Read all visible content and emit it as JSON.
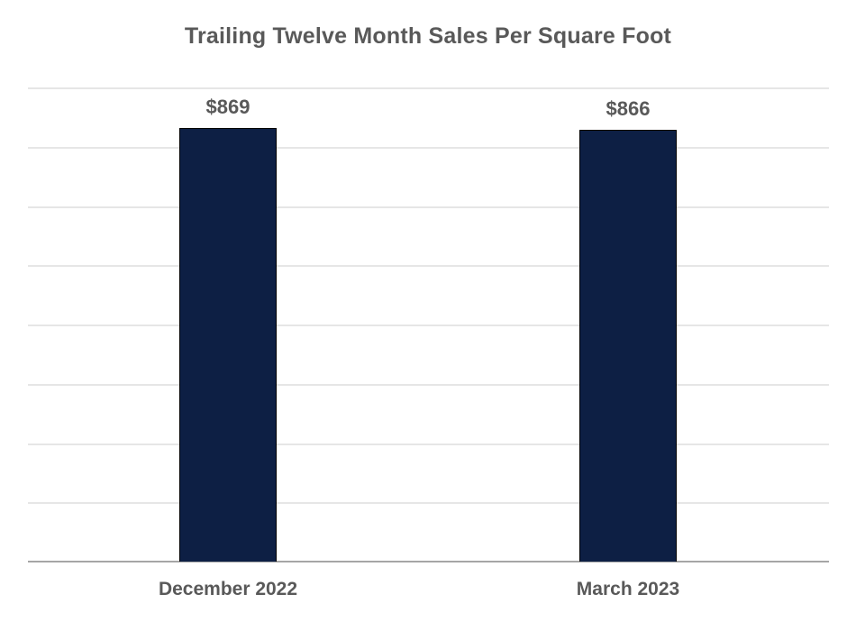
{
  "chart_data": {
    "type": "bar",
    "title": "Trailing Twelve Month Sales Per Square Foot",
    "categories": [
      "December 2022",
      "March 2023"
    ],
    "values": [
      869,
      866
    ],
    "data_labels": [
      "$869",
      "$866"
    ],
    "xlabel": "",
    "ylabel": "",
    "ylim": [
      0,
      950
    ],
    "gridlines": 8,
    "grid": true,
    "legend": null,
    "bar_color": "#0d1f44"
  }
}
